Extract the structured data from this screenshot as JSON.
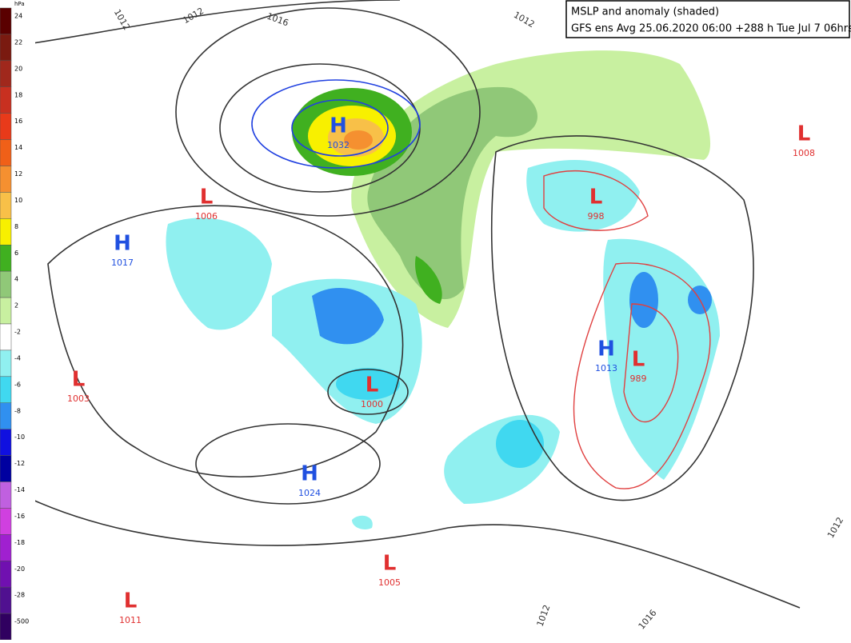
{
  "header": {
    "title": "MSLP and anomaly (shaded)",
    "subtitle": "GFS ens Avg 25.06.2020 06:00 +288 h Tue Jul 7 06hrs"
  },
  "colorbar": {
    "unit": "hPa",
    "labels": [
      "24",
      "22",
      "20",
      "18",
      "16",
      "14",
      "12",
      "10",
      "8",
      "6",
      "4",
      "2",
      "-2",
      "-4",
      "-6",
      "-8",
      "-10",
      "-12",
      "-14",
      "-16",
      "-18",
      "-20",
      "-28",
      "-500"
    ],
    "colors": [
      "#5a0000",
      "#7a1a10",
      "#a0281c",
      "#c83020",
      "#e83a1a",
      "#f06018",
      "#f59030",
      "#f8c048",
      "#f8f000",
      "#40b020",
      "#90c878",
      "#c8f0a0",
      "#ffffff",
      "#90f0f0",
      "#40d8f0",
      "#3090f0",
      "#1010e0",
      "#0000a0",
      "#c060e0",
      "#d040e0",
      "#a020d0",
      "#7010b0",
      "#501090",
      "#300060"
    ]
  },
  "centers": [
    {
      "kind": "H",
      "value": "1032"
    },
    {
      "kind": "L",
      "value": "1006"
    },
    {
      "kind": "H",
      "value": "1017"
    },
    {
      "kind": "L",
      "value": "1000"
    },
    {
      "kind": "H",
      "value": "1024"
    },
    {
      "kind": "L",
      "value": "1005"
    },
    {
      "kind": "L",
      "value": "1011"
    },
    {
      "kind": "L",
      "value": "1008"
    },
    {
      "kind": "L",
      "value": "998"
    },
    {
      "kind": "H",
      "value": "1013"
    },
    {
      "kind": "L",
      "value": "989"
    },
    {
      "kind": "L",
      "value": "1003"
    }
  ],
  "isobar_labels": [
    "1012",
    "1012",
    "1016",
    "1012",
    "1012",
    "1016",
    "1012"
  ]
}
